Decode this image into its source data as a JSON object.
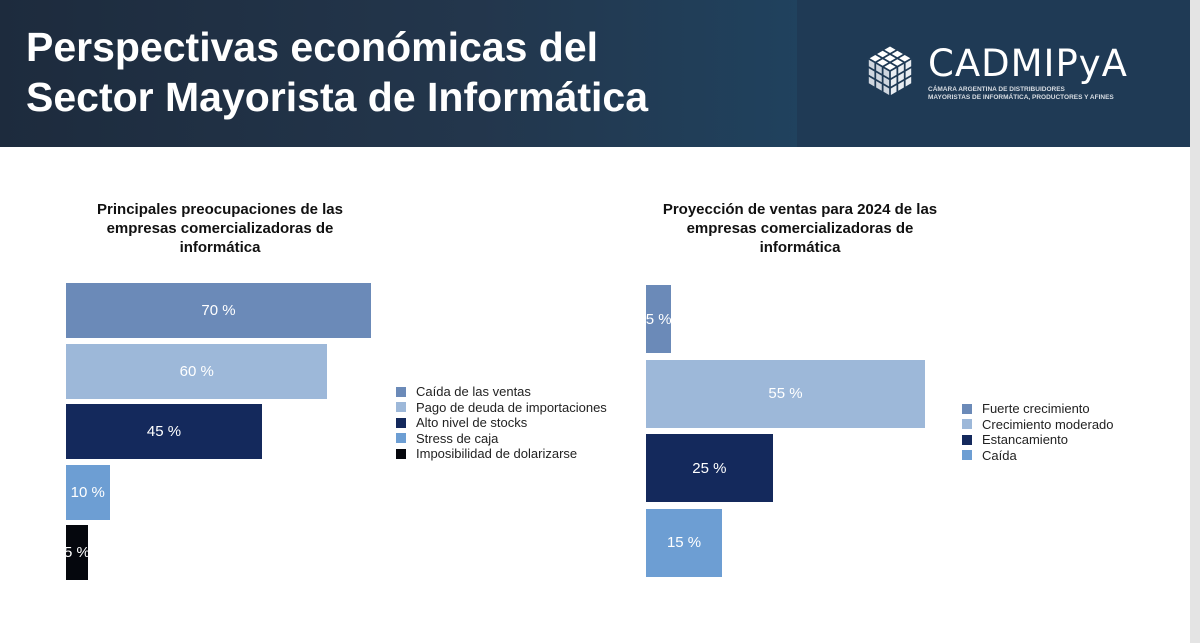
{
  "header": {
    "title_line1": "Perspectivas económicas del",
    "title_line2": "Sector Mayorista de Informática",
    "logo_name": "CADMIPyA",
    "logo_sub_line1": "CÁMARA ARGENTINA DE DISTRIBUIDORES",
    "logo_sub_line2": "MAYORISTAS DE INFORMÁTICA, PRODUCTORES Y AFINES"
  },
  "colors": {
    "header_bg": "#1f3a55",
    "caida_ventas": "#6b8ab8",
    "pago_deuda": "#9db8d9",
    "alto_stocks": "#14295c",
    "stress_caja": "#6d9ed3",
    "dolarizarse": "#05070d"
  },
  "chart_data": [
    {
      "type": "bar",
      "orientation": "horizontal",
      "title_lines": [
        "Principales preocupaciones de las",
        "empresas comercializadoras  de",
        "informática"
      ],
      "categories": [
        "Caída de las ventas",
        "Pago de deuda de importaciones",
        "Alto nivel de stocks",
        "Stress de caja",
        "Imposibilidad de dolarizarse"
      ],
      "values": [
        70,
        60,
        45,
        10,
        5
      ],
      "data_labels": [
        "70 %",
        "60 %",
        "45 %",
        "10 %",
        "5 %"
      ],
      "colors": [
        "#6b8ab8",
        "#9db8d9",
        "#14295c",
        "#6d9ed3",
        "#05070d"
      ],
      "legend_position": "right",
      "xlim": [
        0,
        70
      ],
      "grid": false
    },
    {
      "type": "bar",
      "orientation": "horizontal",
      "title_lines": [
        "Proyección de ventas para 2024 de las",
        "empresas comercializadoras  de",
        "informática"
      ],
      "categories": [
        "Fuerte crecimiento",
        "Crecimiento moderado",
        "Estancamiento",
        "Caída"
      ],
      "values": [
        5,
        55,
        25,
        15
      ],
      "data_labels": [
        "5 %",
        "55 %",
        "25 %",
        "15 %"
      ],
      "colors": [
        "#6b8ab8",
        "#9db8d9",
        "#14295c",
        "#6d9ed3"
      ],
      "legend_position": "right",
      "xlim": [
        0,
        55
      ],
      "grid": false
    }
  ]
}
